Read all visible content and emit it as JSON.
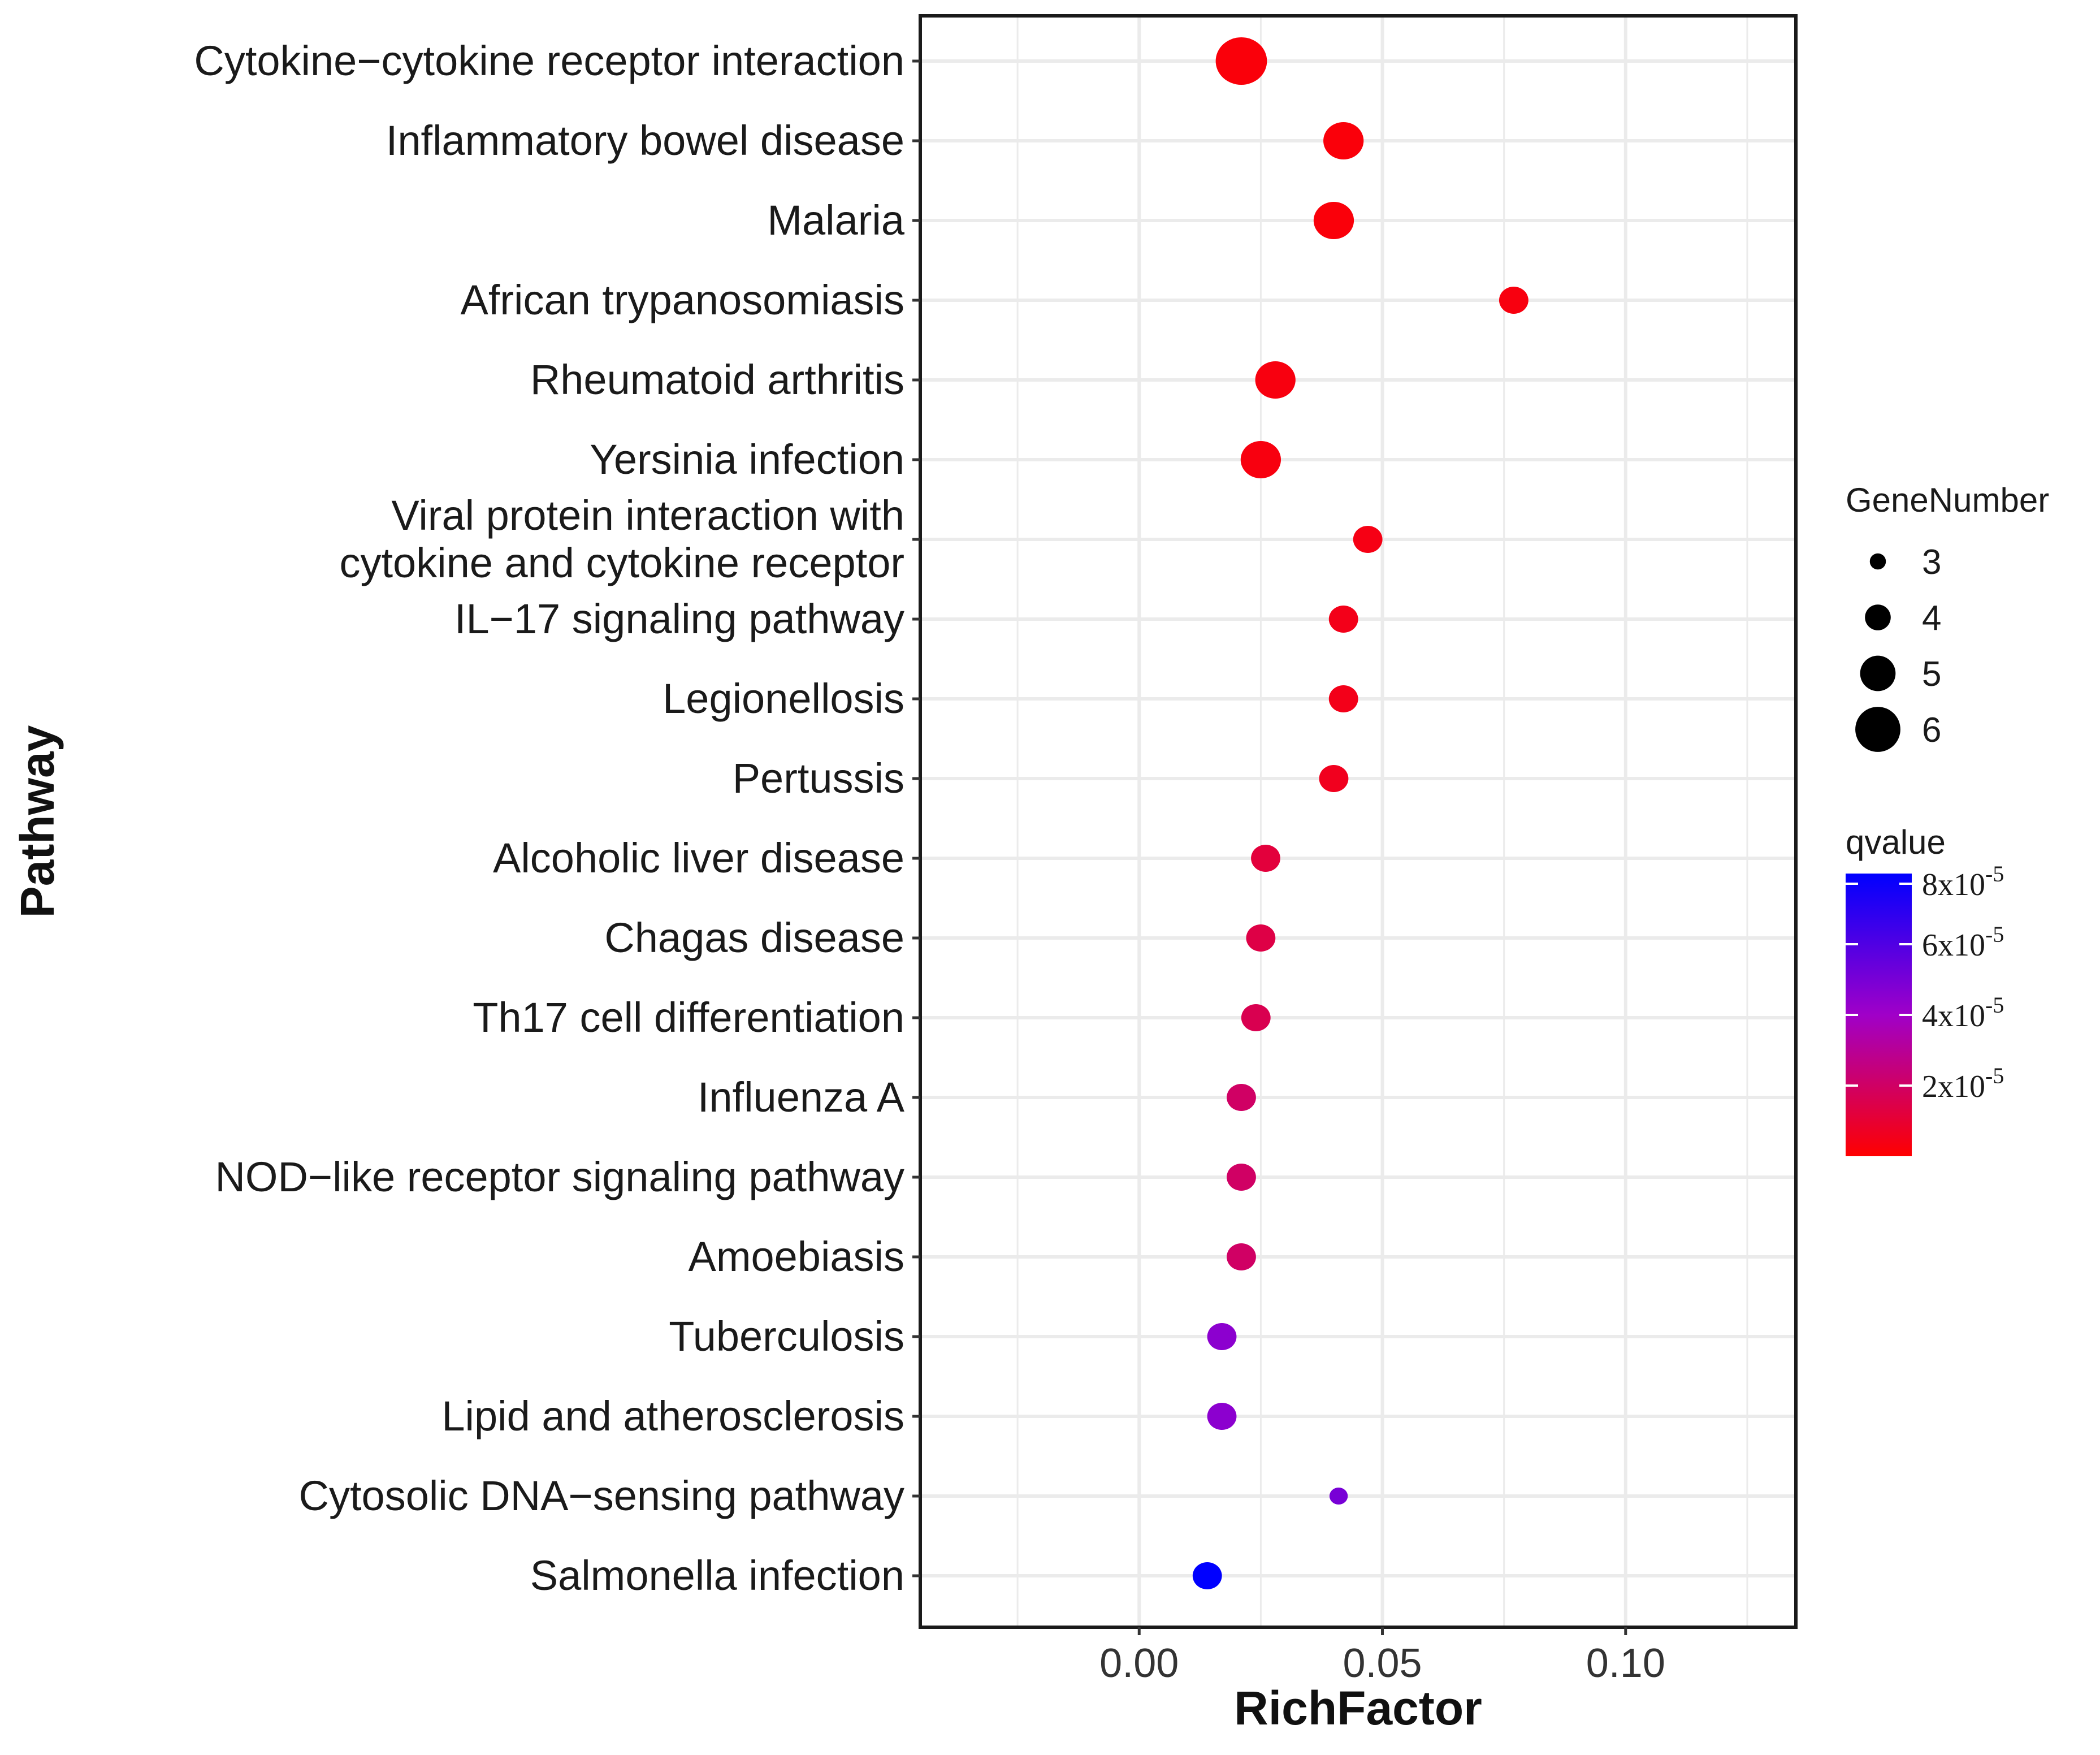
{
  "chart_data": {
    "type": "scatter",
    "subtype": "bubble",
    "xlabel": "RichFactor",
    "ylabel": "Pathway",
    "xlim": [
      -0.045,
      0.135
    ],
    "xticks": [
      {
        "value": 0.0,
        "label": "0.00"
      },
      {
        "value": 0.05,
        "label": "0.05"
      },
      {
        "value": 0.1,
        "label": "0.10"
      }
    ],
    "grid": true,
    "categories": [
      "Cytokine−cytokine receptor interaction",
      "Inflammatory bowel disease",
      "Malaria",
      "African trypanosomiasis",
      "Rheumatoid arthritis",
      "Yersinia infection",
      "Viral protein interaction with cytokine and cytokine receptor",
      "IL−17 signaling pathway",
      "Legionellosis",
      "Pertussis",
      "Alcoholic liver disease",
      "Chagas disease",
      "Th17 cell differentiation",
      "Influenza A",
      "NOD−like receptor signaling pathway",
      "Amoebiasis",
      "Tuberculosis",
      "Lipid and atherosclerosis",
      "Cytosolic DNA−sensing pathway",
      "Salmonella infection"
    ],
    "category_lines": {
      "Viral protein interaction with cytokine and cytokine receptor": [
        "Viral protein interaction with",
        "cytokine and cytokine receptor"
      ]
    },
    "points": [
      {
        "pathway": "Cytokine−cytokine receptor interaction",
        "rich_factor": 0.021,
        "gene_number": 6,
        "qvalue": 2e-06
      },
      {
        "pathway": "Inflammatory bowel disease",
        "rich_factor": 0.042,
        "gene_number": 5,
        "qvalue": 2e-06
      },
      {
        "pathway": "Malaria",
        "rich_factor": 0.04,
        "gene_number": 5,
        "qvalue": 2e-06
      },
      {
        "pathway": "African trypanosomiasis",
        "rich_factor": 0.077,
        "gene_number": 4,
        "qvalue": 3e-06
      },
      {
        "pathway": "Rheumatoid arthritis",
        "rich_factor": 0.028,
        "gene_number": 5,
        "qvalue": 3e-06
      },
      {
        "pathway": "Yersinia infection",
        "rich_factor": 0.025,
        "gene_number": 5,
        "qvalue": 3e-06
      },
      {
        "pathway": "Viral protein interaction with cytokine and cytokine receptor",
        "rich_factor": 0.047,
        "gene_number": 4,
        "qvalue": 4e-06
      },
      {
        "pathway": "IL−17 signaling pathway",
        "rich_factor": 0.042,
        "gene_number": 4,
        "qvalue": 5e-06
      },
      {
        "pathway": "Legionellosis",
        "rich_factor": 0.042,
        "gene_number": 4,
        "qvalue": 5e-06
      },
      {
        "pathway": "Pertussis",
        "rich_factor": 0.04,
        "gene_number": 4,
        "qvalue": 6e-06
      },
      {
        "pathway": "Alcoholic liver disease",
        "rich_factor": 0.026,
        "gene_number": 4,
        "qvalue": 1.2e-05
      },
      {
        "pathway": "Chagas disease",
        "rich_factor": 0.025,
        "gene_number": 4,
        "qvalue": 1.4e-05
      },
      {
        "pathway": "Th17 cell differentiation",
        "rich_factor": 0.024,
        "gene_number": 4,
        "qvalue": 1.6e-05
      },
      {
        "pathway": "Influenza A",
        "rich_factor": 0.021,
        "gene_number": 4,
        "qvalue": 2e-05
      },
      {
        "pathway": "NOD−like receptor signaling pathway",
        "rich_factor": 0.021,
        "gene_number": 4,
        "qvalue": 2e-05
      },
      {
        "pathway": "Amoebiasis",
        "rich_factor": 0.021,
        "gene_number": 4,
        "qvalue": 2e-05
      },
      {
        "pathway": "Tuberculosis",
        "rich_factor": 0.017,
        "gene_number": 4,
        "qvalue": 4.5e-05
      },
      {
        "pathway": "Lipid and atherosclerosis",
        "rich_factor": 0.017,
        "gene_number": 4,
        "qvalue": 4.5e-05
      },
      {
        "pathway": "Cytosolic DNA−sensing pathway",
        "rich_factor": 0.041,
        "gene_number": 3,
        "qvalue": 5e-05
      },
      {
        "pathway": "Salmonella infection",
        "rich_factor": 0.014,
        "gene_number": 4,
        "qvalue": 8e-05
      }
    ],
    "size_legend": {
      "title": "GeneNumber",
      "values": [
        3,
        4,
        5,
        6
      ]
    },
    "color_legend": {
      "title": "qvalue",
      "min": 0,
      "max": 8e-05,
      "low_color": "#ff0000",
      "mid_color": "#a000c8",
      "high_color": "#0000ff",
      "ticks": [
        {
          "value": 2e-05,
          "mantissa": "2",
          "base": "x10",
          "exp": "-5"
        },
        {
          "value": 4e-05,
          "mantissa": "4",
          "base": "x10",
          "exp": "-5"
        },
        {
          "value": 6e-05,
          "mantissa": "6",
          "base": "x10",
          "exp": "-5"
        },
        {
          "value": 8e-05,
          "mantissa": "8",
          "base": "x10",
          "exp": "-5"
        }
      ]
    },
    "legend_position": "right"
  }
}
